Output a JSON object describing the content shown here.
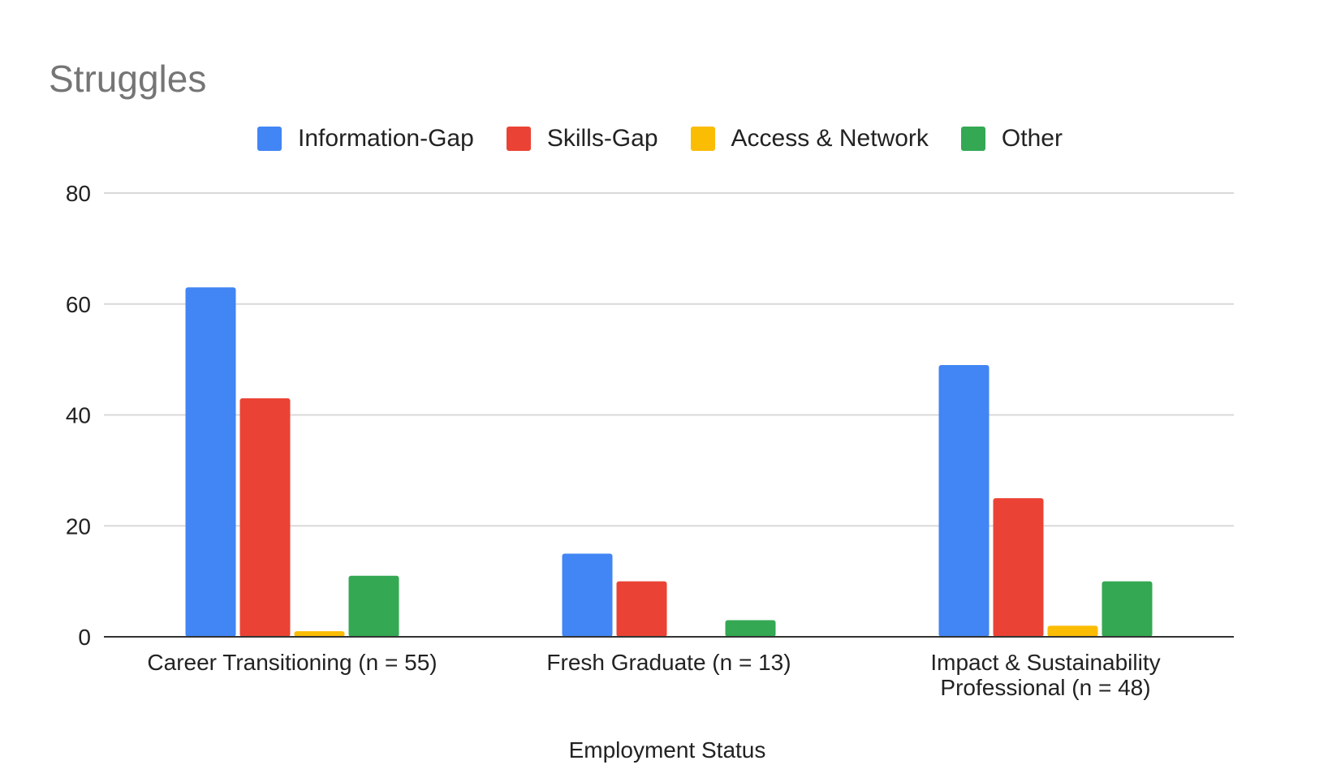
{
  "chart_data": {
    "type": "bar",
    "title": "Struggles",
    "xlabel": "Employment Status",
    "ylabel": "",
    "ylim": [
      0,
      80
    ],
    "yticks": [
      0,
      20,
      40,
      60,
      80
    ],
    "grid": true,
    "legend_position": "top",
    "categories": [
      [
        "Career Transitioning (n = 55)"
      ],
      [
        "Fresh Graduate (n = 13)"
      ],
      [
        "Impact & Sustainability",
        "Professional (n = 48)"
      ]
    ],
    "series": [
      {
        "name": "Information-Gap",
        "color": "#4285f4",
        "values": [
          63,
          15,
          49
        ]
      },
      {
        "name": "Skills-Gap",
        "color": "#ea4335",
        "values": [
          43,
          10,
          25
        ]
      },
      {
        "name": "Access & Network",
        "color": "#fbbc04",
        "values": [
          1,
          0,
          2
        ]
      },
      {
        "name": "Other",
        "color": "#34a853",
        "values": [
          11,
          3,
          10
        ]
      }
    ]
  }
}
